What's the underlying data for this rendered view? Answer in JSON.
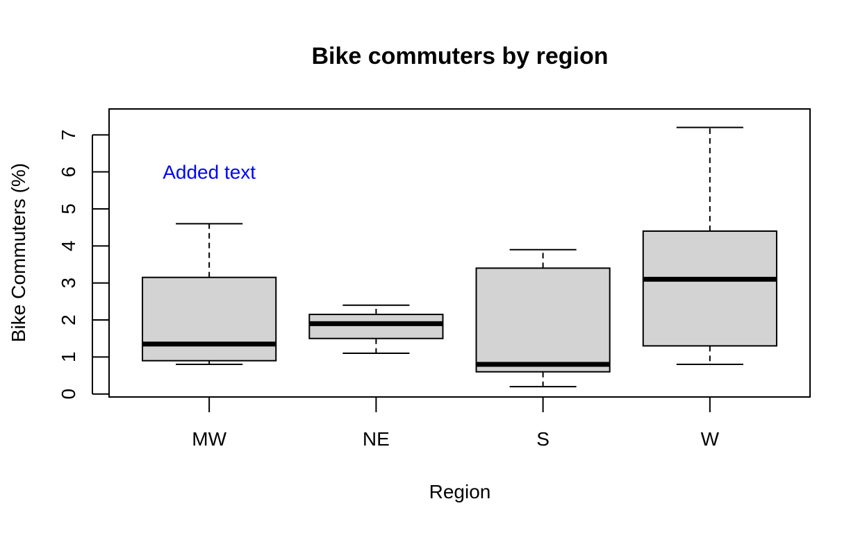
{
  "chart_data": {
    "type": "boxplot",
    "title": "Bike commuters by region",
    "xlabel": "Region",
    "ylabel": "Bike Commuters (%)",
    "categories": [
      "MW",
      "NE",
      "S",
      "W"
    ],
    "boxes": [
      {
        "category": "MW",
        "min": 0.8,
        "q1": 0.9,
        "median": 1.35,
        "q3": 3.15,
        "max": 4.6
      },
      {
        "category": "NE",
        "min": 1.1,
        "q1": 1.5,
        "median": 1.9,
        "q3": 2.15,
        "max": 2.4
      },
      {
        "category": "S",
        "min": 0.2,
        "q1": 0.6,
        "median": 0.8,
        "q3": 3.4,
        "max": 3.9
      },
      {
        "category": "W",
        "min": 0.8,
        "q1": 1.3,
        "median": 3.1,
        "q3": 4.4,
        "max": 7.2
      }
    ],
    "y_ticks": [
      0,
      1,
      2,
      3,
      4,
      5,
      6,
      7
    ],
    "ylim": [
      -0.08,
      7.7
    ],
    "annotation": {
      "text": "Added text",
      "x_category": "MW",
      "y": 6.0,
      "color": "#0000ff"
    },
    "box_fill": "#d3d3d3",
    "grid": false,
    "legend": "none"
  }
}
